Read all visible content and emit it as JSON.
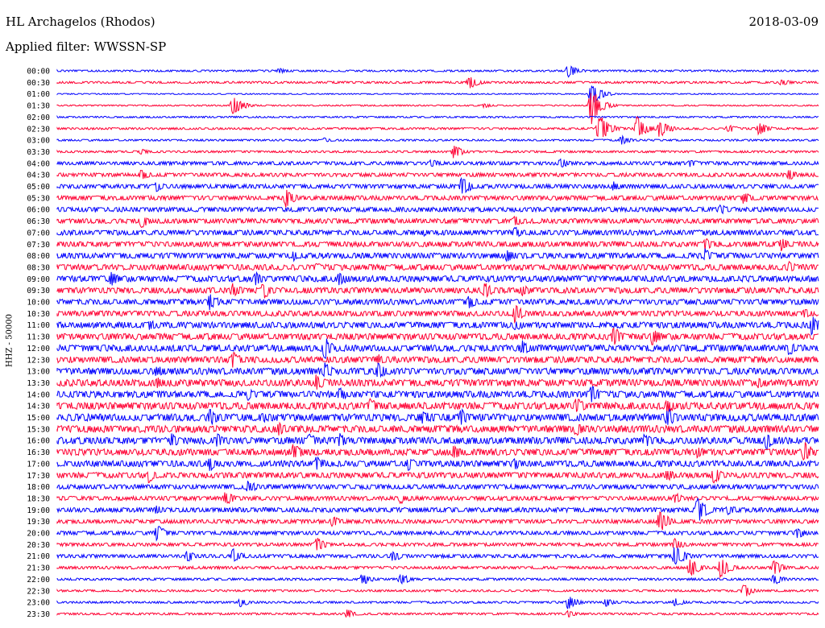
{
  "header": {
    "station": "HL Archagelos (Rhodos)",
    "date": "2018-03-09",
    "filter": "Applied filter: WWSSN-SP"
  },
  "chart_data": {
    "type": "line",
    "title": "HL Archagelos (Rhodos)",
    "ylabel": "HHZ - 50000",
    "row_labels": [
      "00:00",
      "00:30",
      "01:00",
      "01:30",
      "02:00",
      "02:30",
      "03:00",
      "03:30",
      "04:00",
      "04:30",
      "05:00",
      "05:30",
      "06:00",
      "06:30",
      "07:00",
      "07:30",
      "08:00",
      "08:30",
      "09:00",
      "09:30",
      "10:00",
      "10:30",
      "11:00",
      "11:30",
      "12:00",
      "12:30",
      "13:00",
      "13:30",
      "14:00",
      "14:30",
      "15:00",
      "15:30",
      "16:00",
      "16:30",
      "17:00",
      "17:30",
      "18:00",
      "18:30",
      "19:00",
      "19:30",
      "20:00",
      "20:30",
      "21:00",
      "21:30",
      "22:00",
      "22:30",
      "23:00",
      "23:30"
    ],
    "row_minutes": 30,
    "series_colors": [
      "#0000ff",
      "#ff0033"
    ],
    "noise_levels": [
      0.8,
      0.9,
      0.5,
      0.6,
      0.7,
      0.9,
      0.8,
      0.9,
      1.5,
      1.6,
      1.8,
      1.9,
      2.0,
      2.1,
      2.2,
      2.3,
      2.4,
      2.5,
      2.6,
      2.5,
      2.4,
      2.3,
      2.6,
      2.7,
      2.8,
      2.7,
      2.8,
      2.9,
      2.8,
      3.0,
      3.1,
      3.0,
      2.9,
      2.8,
      2.6,
      2.4,
      2.0,
      1.8,
      2.0,
      1.7,
      1.6,
      1.4,
      1.5,
      1.2,
      1.0,
      0.9,
      0.9,
      0.9
    ],
    "events": [
      {
        "row": 0,
        "x_frac": 0.29,
        "amp": 4
      },
      {
        "row": 0,
        "x_frac": 0.67,
        "amp": 9
      },
      {
        "row": 1,
        "x_frac": 0.54,
        "amp": 9
      },
      {
        "row": 1,
        "x_frac": 0.95,
        "amp": 5
      },
      {
        "row": 2,
        "x_frac": 0.7,
        "amp": 16
      },
      {
        "row": 3,
        "x_frac": 0.23,
        "amp": 14
      },
      {
        "row": 3,
        "x_frac": 0.56,
        "amp": 3
      },
      {
        "row": 3,
        "x_frac": 0.7,
        "amp": 26
      },
      {
        "row": 5,
        "x_frac": 0.71,
        "amp": 22
      },
      {
        "row": 5,
        "x_frac": 0.76,
        "amp": 16
      },
      {
        "row": 5,
        "x_frac": 0.79,
        "amp": 12
      },
      {
        "row": 5,
        "x_frac": 0.88,
        "amp": 6
      },
      {
        "row": 5,
        "x_frac": 0.92,
        "amp": 9
      },
      {
        "row": 6,
        "x_frac": 0.35,
        "amp": 3
      },
      {
        "row": 6,
        "x_frac": 0.74,
        "amp": 6
      },
      {
        "row": 7,
        "x_frac": 0.11,
        "amp": 4
      },
      {
        "row": 7,
        "x_frac": 0.52,
        "amp": 9
      },
      {
        "row": 8,
        "x_frac": 0.49,
        "amp": 6
      },
      {
        "row": 8,
        "x_frac": 0.66,
        "amp": 7
      },
      {
        "row": 8,
        "x_frac": 0.83,
        "amp": 6
      },
      {
        "row": 9,
        "x_frac": 0.11,
        "amp": 7
      },
      {
        "row": 9,
        "x_frac": 0.96,
        "amp": 7
      },
      {
        "row": 10,
        "x_frac": 0.13,
        "amp": 7
      },
      {
        "row": 10,
        "x_frac": 0.53,
        "amp": 14
      },
      {
        "row": 10,
        "x_frac": 0.73,
        "amp": 7
      },
      {
        "row": 11,
        "x_frac": 0.3,
        "amp": 12
      },
      {
        "row": 11,
        "x_frac": 0.9,
        "amp": 9
      },
      {
        "row": 12,
        "x_frac": 0.05,
        "amp": 4
      },
      {
        "row": 12,
        "x_frac": 0.87,
        "amp": 7
      },
      {
        "row": 13,
        "x_frac": 0.11,
        "amp": 10
      },
      {
        "row": 13,
        "x_frac": 0.6,
        "amp": 9
      },
      {
        "row": 14,
        "x_frac": 0.6,
        "amp": 9
      },
      {
        "row": 14,
        "x_frac": 0.48,
        "amp": 5
      },
      {
        "row": 15,
        "x_frac": 0.85,
        "amp": 9
      },
      {
        "row": 15,
        "x_frac": 0.95,
        "amp": 9
      },
      {
        "row": 16,
        "x_frac": 0.31,
        "amp": 7
      },
      {
        "row": 16,
        "x_frac": 0.59,
        "amp": 9
      },
      {
        "row": 16,
        "x_frac": 0.85,
        "amp": 9
      },
      {
        "row": 17,
        "x_frac": 0.34,
        "amp": 6
      },
      {
        "row": 17,
        "x_frac": 0.96,
        "amp": 8
      },
      {
        "row": 18,
        "x_frac": 0.07,
        "amp": 10
      },
      {
        "row": 18,
        "x_frac": 0.26,
        "amp": 9
      },
      {
        "row": 18,
        "x_frac": 0.37,
        "amp": 10
      },
      {
        "row": 19,
        "x_frac": 0.23,
        "amp": 10
      },
      {
        "row": 19,
        "x_frac": 0.27,
        "amp": 12
      },
      {
        "row": 19,
        "x_frac": 0.56,
        "amp": 11
      },
      {
        "row": 19,
        "x_frac": 0.61,
        "amp": 8
      },
      {
        "row": 20,
        "x_frac": 0.2,
        "amp": 12
      },
      {
        "row": 20,
        "x_frac": 0.54,
        "amp": 9
      },
      {
        "row": 21,
        "x_frac": 0.6,
        "amp": 12
      },
      {
        "row": 21,
        "x_frac": 0.98,
        "amp": 7
      },
      {
        "row": 22,
        "x_frac": 0.12,
        "amp": 8
      },
      {
        "row": 22,
        "x_frac": 0.6,
        "amp": 9
      },
      {
        "row": 22,
        "x_frac": 0.99,
        "amp": 14
      },
      {
        "row": 23,
        "x_frac": 0.73,
        "amp": 14
      },
      {
        "row": 23,
        "x_frac": 0.78,
        "amp": 12
      },
      {
        "row": 24,
        "x_frac": 0.35,
        "amp": 16
      },
      {
        "row": 24,
        "x_frac": 0.61,
        "amp": 10
      },
      {
        "row": 24,
        "x_frac": 0.96,
        "amp": 10
      },
      {
        "row": 25,
        "x_frac": 0.23,
        "amp": 12
      },
      {
        "row": 25,
        "x_frac": 0.42,
        "amp": 8
      },
      {
        "row": 26,
        "x_frac": 0.13,
        "amp": 10
      },
      {
        "row": 26,
        "x_frac": 0.35,
        "amp": 12
      },
      {
        "row": 26,
        "x_frac": 0.42,
        "amp": 12
      },
      {
        "row": 27,
        "x_frac": 0.13,
        "amp": 8
      },
      {
        "row": 27,
        "x_frac": 0.34,
        "amp": 12
      },
      {
        "row": 27,
        "x_frac": 0.92,
        "amp": 8
      },
      {
        "row": 28,
        "x_frac": 0.25,
        "amp": 8
      },
      {
        "row": 28,
        "x_frac": 0.37,
        "amp": 10
      },
      {
        "row": 28,
        "x_frac": 0.7,
        "amp": 14
      },
      {
        "row": 29,
        "x_frac": 0.41,
        "amp": 10
      },
      {
        "row": 29,
        "x_frac": 0.68,
        "amp": 12
      },
      {
        "row": 29,
        "x_frac": 0.8,
        "amp": 10
      },
      {
        "row": 30,
        "x_frac": 0.2,
        "amp": 12
      },
      {
        "row": 30,
        "x_frac": 0.27,
        "amp": 8
      },
      {
        "row": 30,
        "x_frac": 0.48,
        "amp": 10
      },
      {
        "row": 30,
        "x_frac": 0.53,
        "amp": 12
      },
      {
        "row": 30,
        "x_frac": 0.8,
        "amp": 14
      },
      {
        "row": 31,
        "x_frac": 0.29,
        "amp": 10
      },
      {
        "row": 31,
        "x_frac": 0.68,
        "amp": 10
      },
      {
        "row": 32,
        "x_frac": 0.15,
        "amp": 10
      },
      {
        "row": 32,
        "x_frac": 0.21,
        "amp": 10
      },
      {
        "row": 32,
        "x_frac": 0.33,
        "amp": 10
      },
      {
        "row": 32,
        "x_frac": 0.37,
        "amp": 10
      },
      {
        "row": 32,
        "x_frac": 0.77,
        "amp": 10
      },
      {
        "row": 32,
        "x_frac": 0.93,
        "amp": 12
      },
      {
        "row": 33,
        "x_frac": 0.31,
        "amp": 12
      },
      {
        "row": 33,
        "x_frac": 0.52,
        "amp": 10
      },
      {
        "row": 33,
        "x_frac": 0.84,
        "amp": 8
      },
      {
        "row": 33,
        "x_frac": 0.98,
        "amp": 14
      },
      {
        "row": 34,
        "x_frac": 0.2,
        "amp": 10
      },
      {
        "row": 34,
        "x_frac": 0.34,
        "amp": 10
      },
      {
        "row": 34,
        "x_frac": 0.46,
        "amp": 10
      },
      {
        "row": 34,
        "x_frac": 0.6,
        "amp": 8
      },
      {
        "row": 35,
        "x_frac": 0.12,
        "amp": 10
      },
      {
        "row": 35,
        "x_frac": 0.8,
        "amp": 8
      },
      {
        "row": 35,
        "x_frac": 0.86,
        "amp": 12
      },
      {
        "row": 36,
        "x_frac": 0.25,
        "amp": 10
      },
      {
        "row": 37,
        "x_frac": 0.22,
        "amp": 10
      },
      {
        "row": 37,
        "x_frac": 0.45,
        "amp": 8
      },
      {
        "row": 37,
        "x_frac": 0.81,
        "amp": 8
      },
      {
        "row": 38,
        "x_frac": 0.13,
        "amp": 6
      },
      {
        "row": 38,
        "x_frac": 0.84,
        "amp": 18
      },
      {
        "row": 38,
        "x_frac": 0.88,
        "amp": 8
      },
      {
        "row": 39,
        "x_frac": 0.36,
        "amp": 8
      },
      {
        "row": 39,
        "x_frac": 0.79,
        "amp": 16
      },
      {
        "row": 40,
        "x_frac": 0.13,
        "amp": 12
      },
      {
        "row": 40,
        "x_frac": 0.97,
        "amp": 8
      },
      {
        "row": 41,
        "x_frac": 0.34,
        "amp": 10
      },
      {
        "row": 41,
        "x_frac": 0.81,
        "amp": 8
      },
      {
        "row": 42,
        "x_frac": 0.17,
        "amp": 8
      },
      {
        "row": 42,
        "x_frac": 0.23,
        "amp": 10
      },
      {
        "row": 42,
        "x_frac": 0.44,
        "amp": 8
      },
      {
        "row": 42,
        "x_frac": 0.81,
        "amp": 16
      },
      {
        "row": 43,
        "x_frac": 0.83,
        "amp": 14
      },
      {
        "row": 43,
        "x_frac": 0.87,
        "amp": 14
      },
      {
        "row": 43,
        "x_frac": 0.94,
        "amp": 10
      },
      {
        "row": 44,
        "x_frac": 0.4,
        "amp": 8
      },
      {
        "row": 44,
        "x_frac": 0.45,
        "amp": 8
      },
      {
        "row": 44,
        "x_frac": 0.94,
        "amp": 8
      },
      {
        "row": 45,
        "x_frac": 0.9,
        "amp": 10
      },
      {
        "row": 46,
        "x_frac": 0.24,
        "amp": 6
      },
      {
        "row": 46,
        "x_frac": 0.67,
        "amp": 9
      },
      {
        "row": 46,
        "x_frac": 0.72,
        "amp": 6
      },
      {
        "row": 46,
        "x_frac": 0.81,
        "amp": 6
      },
      {
        "row": 47,
        "x_frac": 0.38,
        "amp": 6
      },
      {
        "row": 47,
        "x_frac": 0.67,
        "amp": 5
      }
    ]
  }
}
